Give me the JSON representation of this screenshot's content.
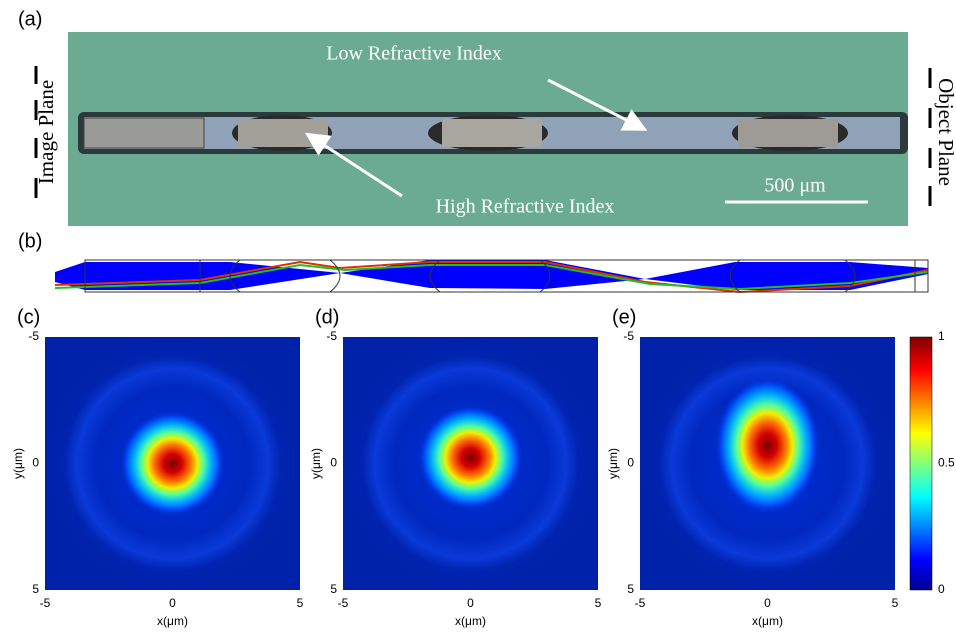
{
  "panel_a": {
    "label": "(a)",
    "upper_annotation": "Low Refractive Index",
    "lower_annotation": "High Refractive Index",
    "scale_bar": "500 μm",
    "left_label": "Image Plane",
    "right_label": "Object Plane"
  },
  "panel_b": {
    "label": "(b)"
  },
  "maps": [
    {
      "label": "(c)"
    },
    {
      "label": "(d)"
    },
    {
      "label": "(e)"
    }
  ],
  "axes": {
    "xticks": [
      -5,
      0,
      5
    ],
    "yticks": [
      -5,
      0,
      5
    ],
    "xlabel": "x(μm)",
    "ylabel": "y(μm)"
  },
  "colorbar": {
    "ticks": [
      0,
      0.5,
      1
    ]
  }
}
